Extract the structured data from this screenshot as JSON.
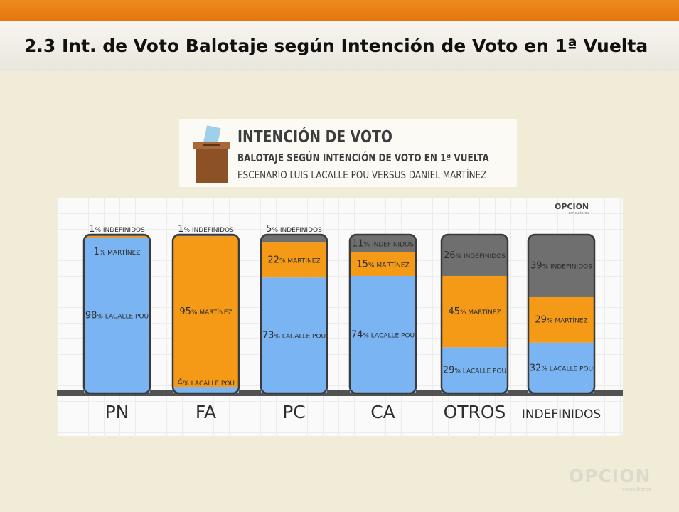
{
  "slide": {
    "title": "2.3 Int. de Voto Balotaje según Intención de Voto en 1ª Vuelta"
  },
  "chart_header": {
    "title": "INTENCIÓN DE VOTO",
    "subtitle": "BALOTAJE SEGÚN INTENCIÓN DE VOTO EN 1ª VUELTA",
    "scenario": "ESCENARIO LUIS LACALLE POU VERSUS DANIEL MARTÍNEZ"
  },
  "brand": {
    "chart_logo": "OPCION",
    "chart_logo_sub": "consultores",
    "footer_logo": "OPCION",
    "footer_logo_sub": "consultores"
  },
  "colors": {
    "lacalle_pou": "#7ab4f2",
    "martinez": "#f59a17",
    "indefinidos": "#6f6f6f",
    "accent": "#e5760c"
  },
  "chart_data": {
    "type": "bar",
    "stacked": true,
    "ylim": [
      0,
      100
    ],
    "categories": [
      "PN",
      "FA",
      "PC",
      "CA",
      "OTROS",
      "INDEFINIDOS"
    ],
    "series": [
      {
        "name": "LACALLE POU",
        "values": [
          98,
          4,
          73,
          74,
          29,
          32
        ]
      },
      {
        "name": "MARTÍNEZ",
        "values": [
          1,
          95,
          22,
          15,
          45,
          29
        ]
      },
      {
        "name": "INDEFINIDOS",
        "values": [
          1,
          1,
          5,
          11,
          26,
          39
        ]
      }
    ]
  }
}
